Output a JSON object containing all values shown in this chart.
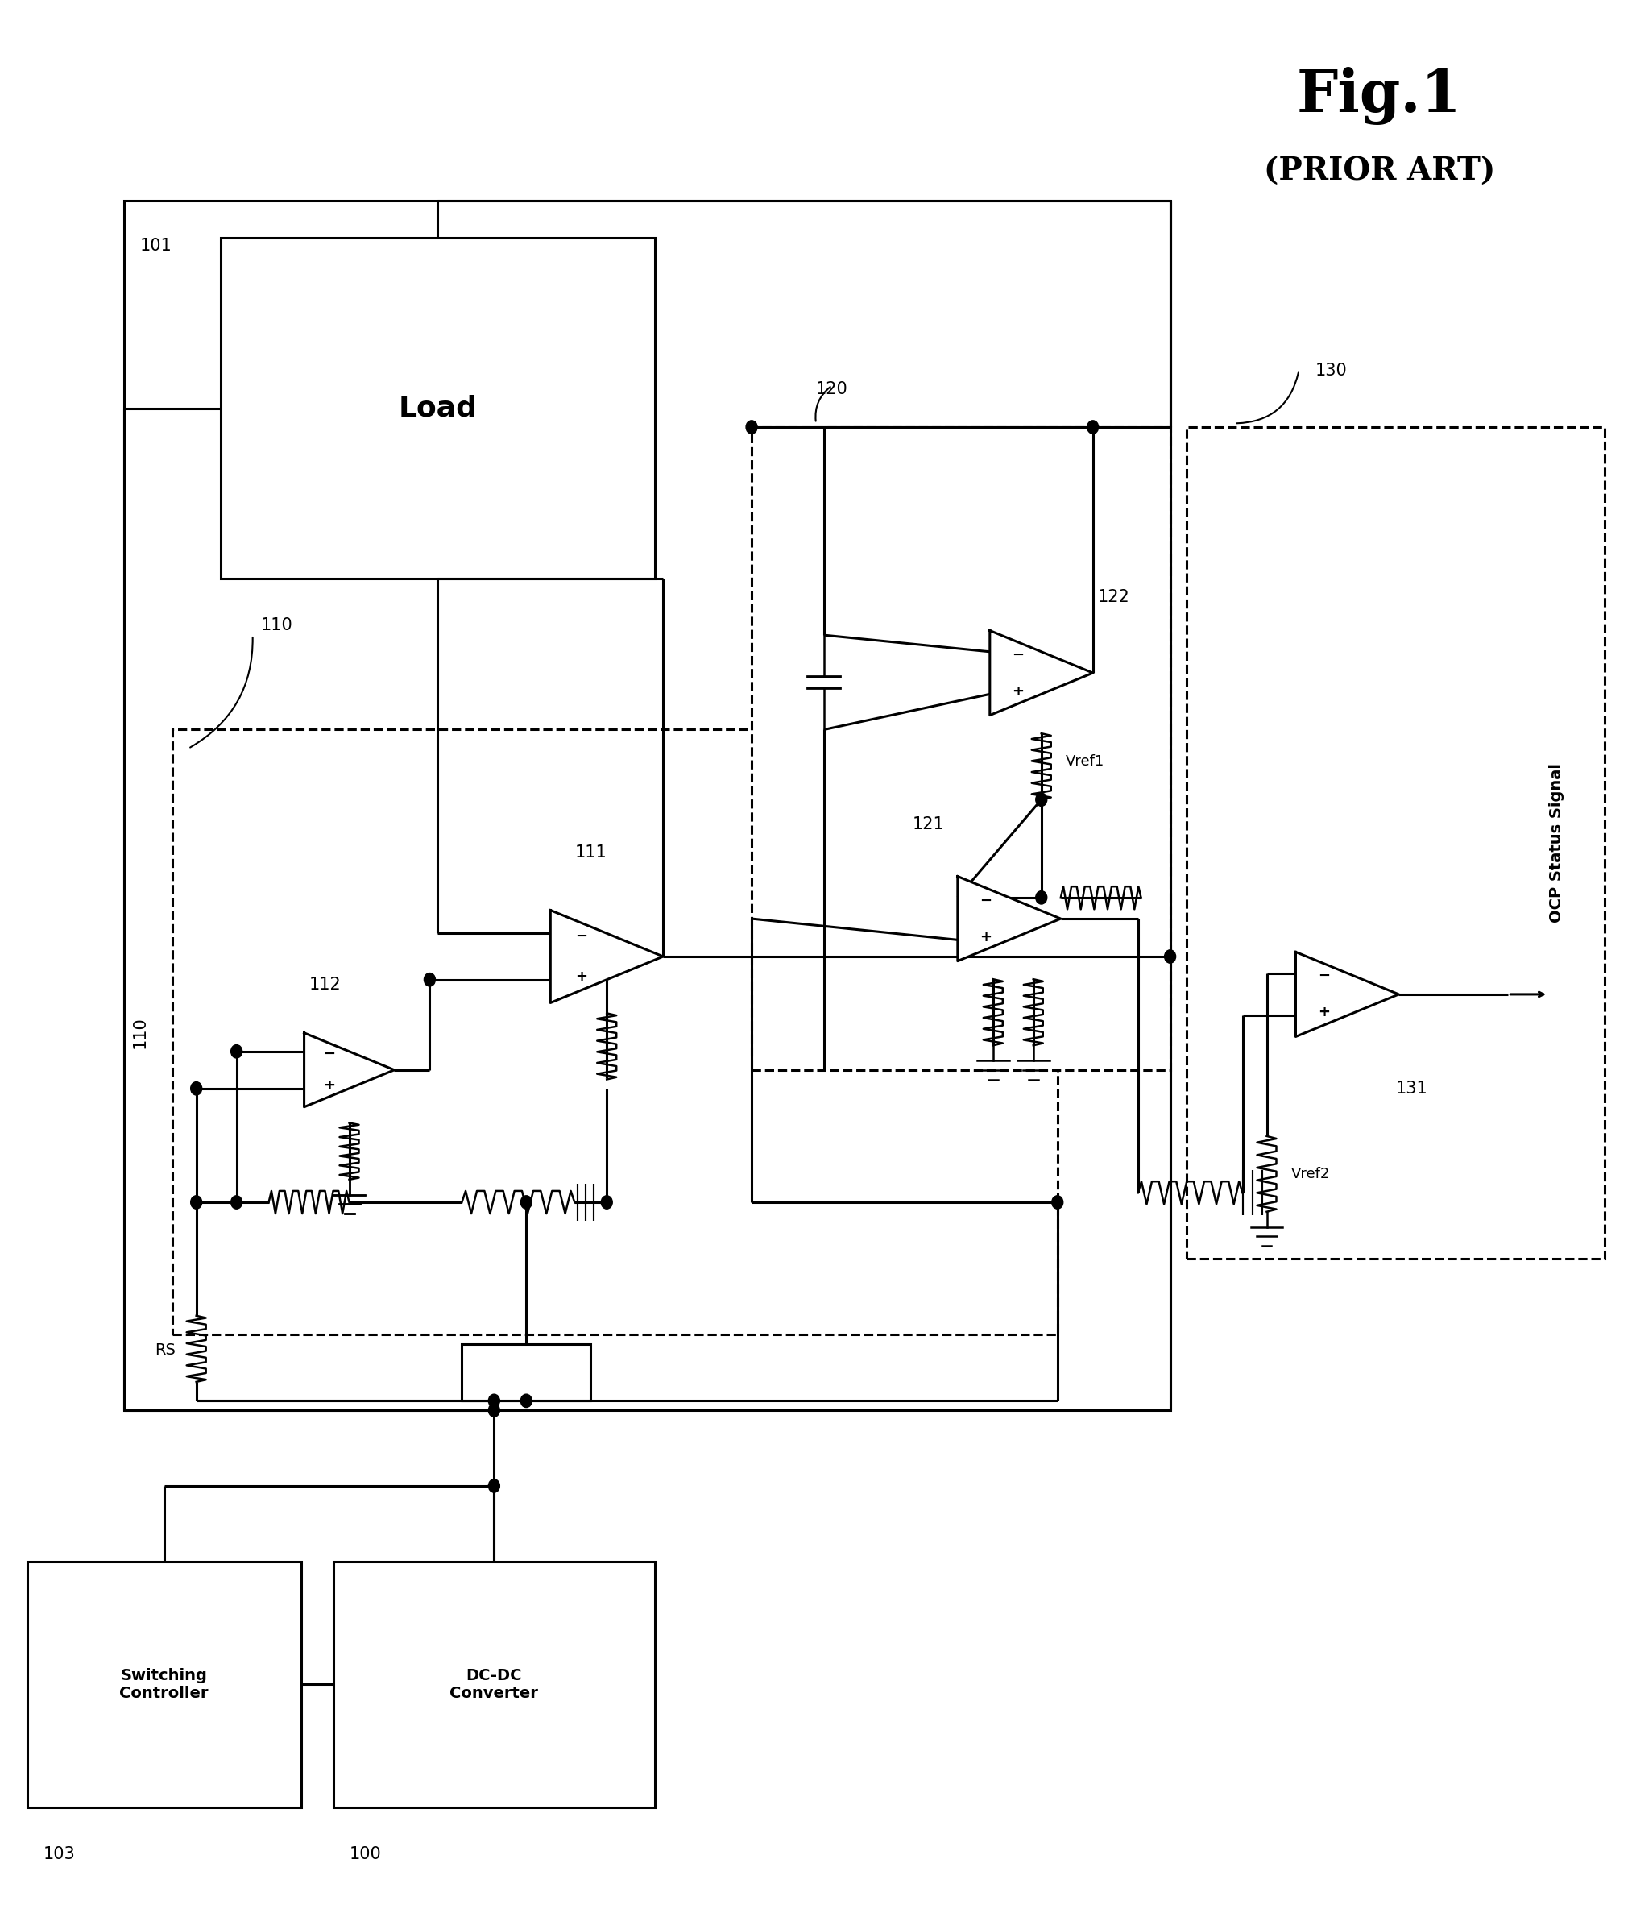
{
  "bg_color": "#ffffff",
  "line_color": "#000000",
  "fig_title": "Fig.1",
  "fig_subtitle": "(PRIOR ART)",
  "label_load": "Load",
  "label_sc": "Switching\nController",
  "label_dc": "DC-DC\nConverter",
  "label_ocp": "OCP Status Signal",
  "label_rs": "RS",
  "label_vref1": "Vref1",
  "label_vref2": "Vref2",
  "n100": "100",
  "n101": "101",
  "n103": "103",
  "n110": "110",
  "n111": "111",
  "n112": "112",
  "n120": "120",
  "n121": "121",
  "n122": "122",
  "n130": "130",
  "n131": "131"
}
